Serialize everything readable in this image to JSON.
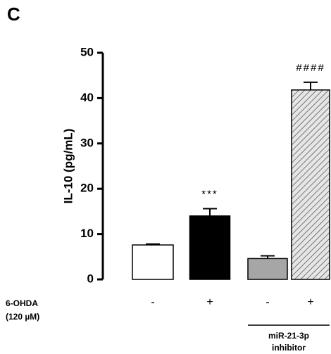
{
  "panel_label": "C",
  "chart_data": {
    "type": "bar",
    "y_label": "IL-10 (pg/mL)",
    "categories": [
      null,
      null,
      null,
      null
    ],
    "values": [
      7.6,
      14.0,
      4.6,
      41.8
    ],
    "errors": [
      0.2,
      1.6,
      0.6,
      1.7
    ],
    "colors": [
      "#ffffff",
      "#000000",
      "#a6a6a6",
      "#d9d9d9"
    ],
    "hatched": [
      false,
      false,
      false,
      true
    ],
    "annotations": [
      {
        "index": 1,
        "text": "***"
      },
      {
        "index": 3,
        "text": "####"
      }
    ],
    "ylim": [
      0,
      50
    ],
    "yticks": [
      0,
      10,
      20,
      30,
      40,
      50
    ],
    "treatment": {
      "label": "6-OHDA",
      "sublabel": "(120 µM)",
      "signs": [
        "-",
        "+",
        "-",
        "+"
      ]
    },
    "group": {
      "indices": [
        2,
        3
      ],
      "label": [
        "miR-21-3p",
        "inhibitor"
      ]
    }
  }
}
